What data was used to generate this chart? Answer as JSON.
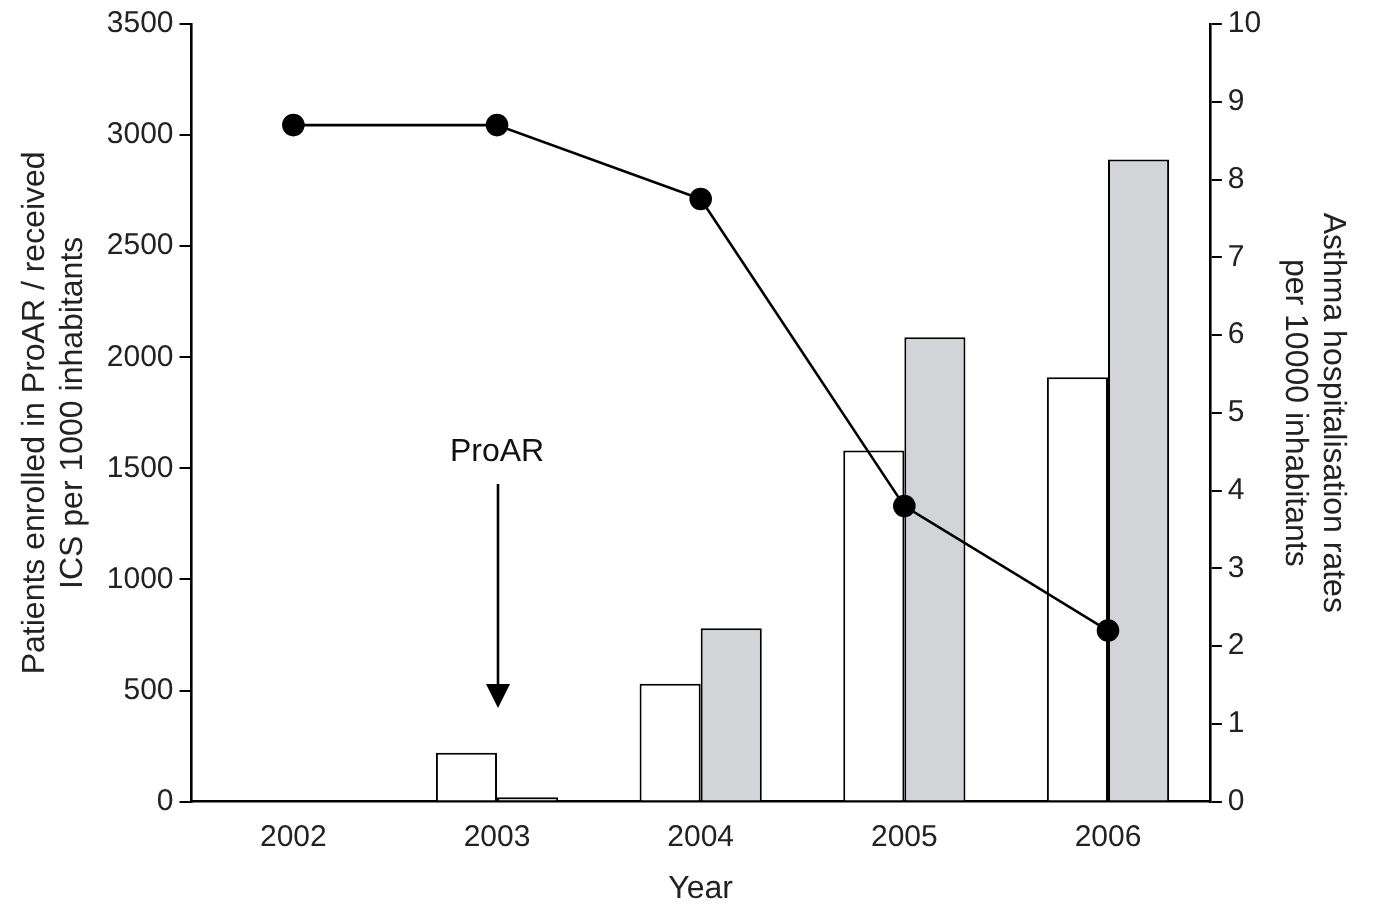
{
  "chart_data": {
    "type": "bar",
    "xlabel": "Year",
    "ylabel": "Patients enrolled in ProAR / received\nICS per 1000 inhabitants",
    "y2label": "Asthma hospitalisation rates\nper 10000 inhabitants",
    "categories": [
      "2002",
      "2003",
      "2004",
      "2005",
      "2006"
    ],
    "series": [
      {
        "color": "#ffffff",
        "values": [
          0,
          220,
          530,
          1580,
          1910
        ]
      },
      {
        "color": "#d3d4d8",
        "values": [
          0,
          20,
          780,
          2090,
          2890
        ]
      },
      {
        "type": "line",
        "axis": "y2",
        "color": "#000000",
        "values": [
          8.7,
          8.7,
          7.75,
          3.8,
          2.2
        ]
      }
    ],
    "ylim": [
      0,
      3500
    ],
    "yticks": [
      0,
      500,
      1000,
      1500,
      2000,
      2500,
      3000,
      3500
    ],
    "y2lim": [
      0,
      10
    ],
    "y2ticks": [
      0,
      1,
      2,
      3,
      4,
      5,
      6,
      7,
      8,
      9,
      10
    ],
    "annotations": [
      "ProAR"
    ],
    "grid": false,
    "legend": false,
    "marker": "circle",
    "line_style": "solid"
  }
}
